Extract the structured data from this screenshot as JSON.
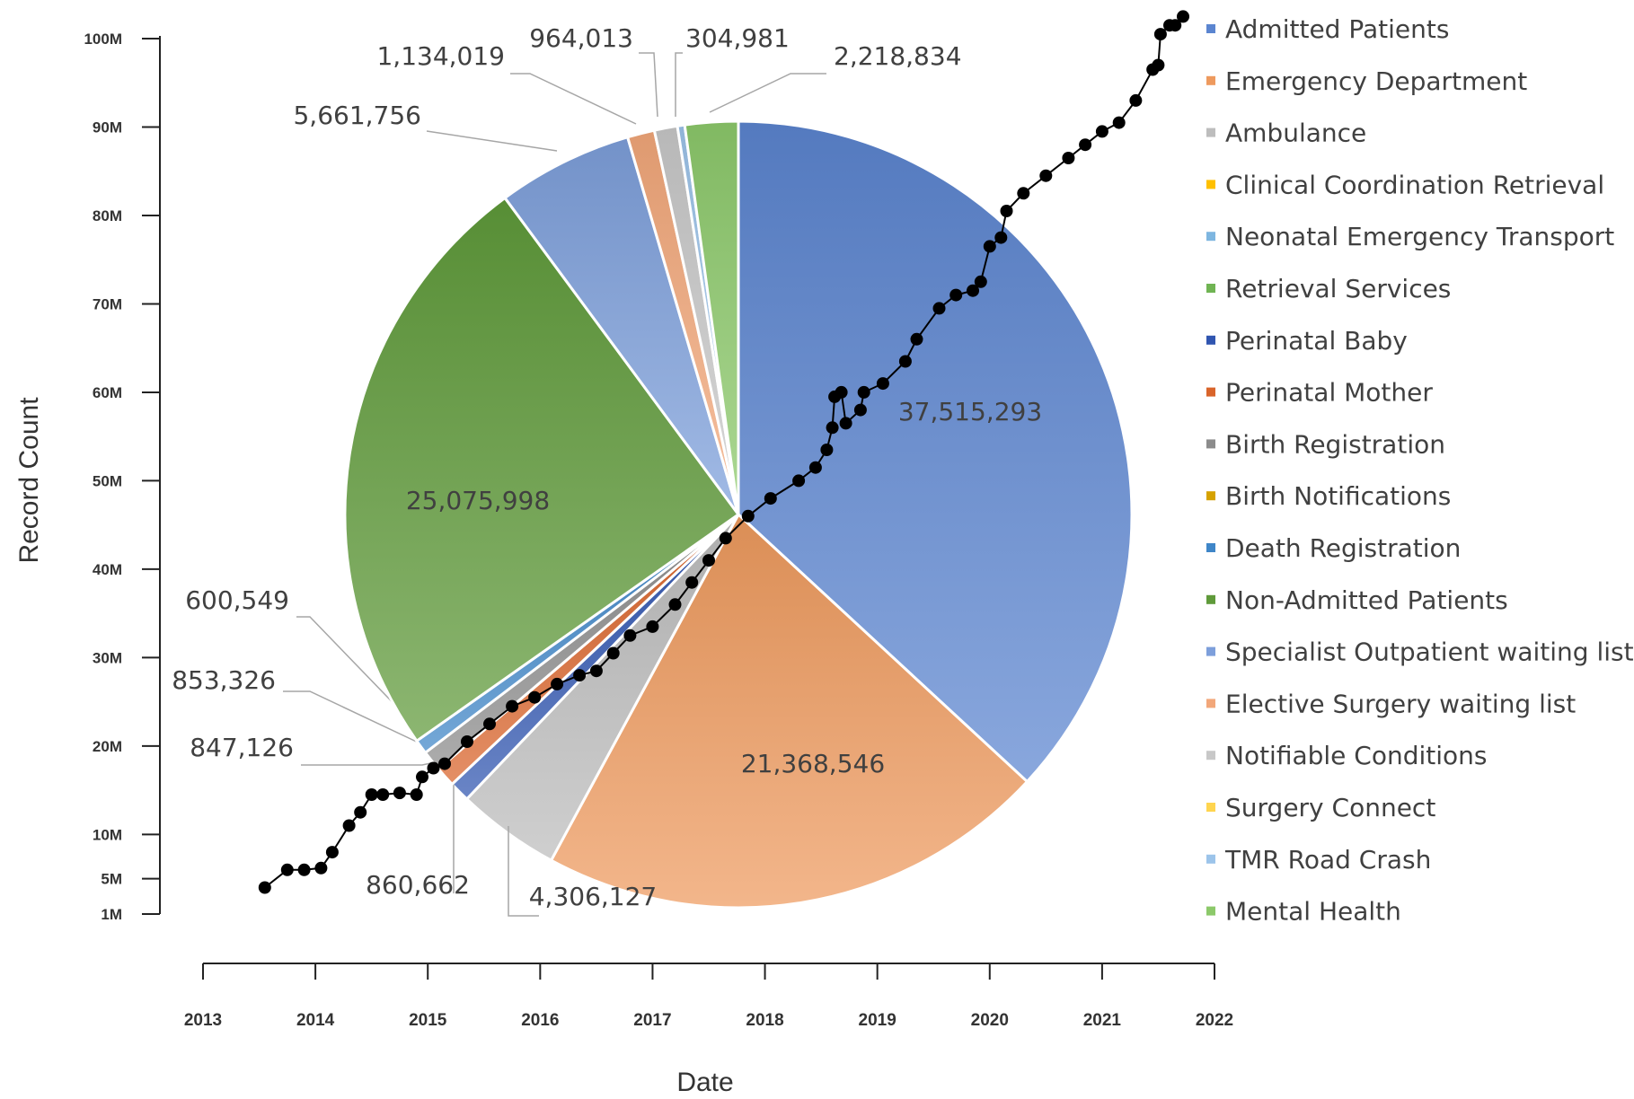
{
  "chart_data": [
    {
      "type": "line",
      "xlabel": "Date",
      "ylabel": "Record Count",
      "x_ticks": [
        "2013",
        "2014",
        "2015",
        "2016",
        "2017",
        "2018",
        "2019",
        "2020",
        "2021",
        "2022"
      ],
      "y_ticks": [
        "1M",
        "5M",
        "10M",
        "20M",
        "30M",
        "40M",
        "50M",
        "60M",
        "70M",
        "80M",
        "90M",
        "100M"
      ],
      "y_tick_values": [
        1,
        5,
        10,
        20,
        30,
        40,
        50,
        60,
        70,
        80,
        90,
        100
      ],
      "xlim": [
        2013,
        2022
      ],
      "ylim": [
        0,
        100
      ],
      "grid": false,
      "series": [
        {
          "color": "#000000",
          "marker": "circle",
          "points": [
            [
              2013.55,
              4.0
            ],
            [
              2013.75,
              6.0
            ],
            [
              2013.9,
              6.0
            ],
            [
              2014.05,
              6.2
            ],
            [
              2014.15,
              8.0
            ],
            [
              2014.3,
              11.0
            ],
            [
              2014.4,
              12.5
            ],
            [
              2014.5,
              14.5
            ],
            [
              2014.6,
              14.5
            ],
            [
              2014.75,
              14.7
            ],
            [
              2014.9,
              14.5
            ],
            [
              2014.95,
              16.5
            ],
            [
              2015.05,
              17.5
            ],
            [
              2015.15,
              18.0
            ],
            [
              2015.35,
              20.5
            ],
            [
              2015.55,
              22.5
            ],
            [
              2015.75,
              24.5
            ],
            [
              2015.95,
              25.5
            ],
            [
              2016.15,
              27.0
            ],
            [
              2016.35,
              28.0
            ],
            [
              2016.5,
              28.5
            ],
            [
              2016.65,
              30.5
            ],
            [
              2016.8,
              32.5
            ],
            [
              2017.0,
              33.5
            ],
            [
              2017.2,
              36.0
            ],
            [
              2017.35,
              38.5
            ],
            [
              2017.5,
              41.0
            ],
            [
              2017.65,
              43.5
            ],
            [
              2017.85,
              46.0
            ],
            [
              2018.05,
              48.0
            ],
            [
              2018.3,
              50.0
            ],
            [
              2018.45,
              51.5
            ],
            [
              2018.55,
              53.5
            ],
            [
              2018.6,
              56.0
            ],
            [
              2018.62,
              59.5
            ],
            [
              2018.68,
              60.0
            ],
            [
              2018.72,
              56.5
            ],
            [
              2018.85,
              58.0
            ],
            [
              2018.88,
              60.0
            ],
            [
              2019.05,
              61.0
            ],
            [
              2019.25,
              63.5
            ],
            [
              2019.35,
              66.0
            ],
            [
              2019.55,
              69.5
            ],
            [
              2019.7,
              71.0
            ],
            [
              2019.85,
              71.5
            ],
            [
              2019.92,
              72.5
            ],
            [
              2020.0,
              76.5
            ],
            [
              2020.1,
              77.5
            ],
            [
              2020.15,
              80.5
            ],
            [
              2020.3,
              82.5
            ],
            [
              2020.5,
              84.5
            ],
            [
              2020.7,
              86.5
            ],
            [
              2020.85,
              88.0
            ],
            [
              2021.0,
              89.5
            ],
            [
              2021.15,
              90.5
            ],
            [
              2021.3,
              93.0
            ],
            [
              2021.45,
              96.5
            ],
            [
              2021.5,
              97.0
            ],
            [
              2021.52,
              100.5
            ],
            [
              2021.6,
              101.5
            ],
            [
              2021.65,
              101.5
            ],
            [
              2021.72,
              102.5
            ]
          ]
        }
      ]
    },
    {
      "type": "pie",
      "slices": [
        {
          "name": "Admitted Patients",
          "value": 37515293,
          "label": "37,515,293",
          "color": "#5B85D0"
        },
        {
          "name": "Emergency Department",
          "value": 21368546,
          "label": "21,368,546",
          "color": "#EE9A5E"
        },
        {
          "name": "Ambulance",
          "value": 4306127,
          "label": "4,306,127",
          "color": "#BDBDBD"
        },
        {
          "name": "Clinical Coordination Retrieval",
          "value": 0,
          "label": "",
          "color": "#FFC000"
        },
        {
          "name": "Neonatal Emergency Transport",
          "value": 0,
          "label": "",
          "color": "#7EB6E0"
        },
        {
          "name": "Retrieval Services",
          "value": 0,
          "label": "",
          "color": "#70B453"
        },
        {
          "name": "Perinatal Baby",
          "value": 860662,
          "label": "860,662",
          "color": "#3055B0"
        },
        {
          "name": "Perinatal Mother",
          "value": 847126,
          "label": "847,126",
          "color": "#D9642A"
        },
        {
          "name": "Birth Registration",
          "value": 853326,
          "label": "853,326",
          "color": "#8C8C8C"
        },
        {
          "name": "Birth Notifications",
          "value": 0,
          "label": "",
          "color": "#D6A200"
        },
        {
          "name": "Death Registration",
          "value": 600549,
          "label": "600,549",
          "color": "#3F86C8"
        },
        {
          "name": "Non-Admitted Patients",
          "value": 25075998,
          "label": "25,075,998",
          "color": "#5F9A3A"
        },
        {
          "name": "Specialist Outpatient waiting list",
          "value": 5661756,
          "label": "5,661,756",
          "color": "#7D9FDB"
        },
        {
          "name": "Elective Surgery waiting list",
          "value": 1134019,
          "label": "1,134,019",
          "color": "#F2A77A"
        },
        {
          "name": "Notifiable Conditions",
          "value": 964013,
          "label": "964,013",
          "color": "#C8C8C8"
        },
        {
          "name": "Surgery Connect",
          "value": 0,
          "label": "",
          "color": "#FFD54F"
        },
        {
          "name": "TMR Road Crash",
          "value": 304981,
          "label": "304,981",
          "color": "#9CC4EA"
        },
        {
          "name": "Mental Health",
          "value": 2218834,
          "label": "2,218,834",
          "color": "#8CC96A"
        }
      ],
      "legend": "right"
    }
  ]
}
